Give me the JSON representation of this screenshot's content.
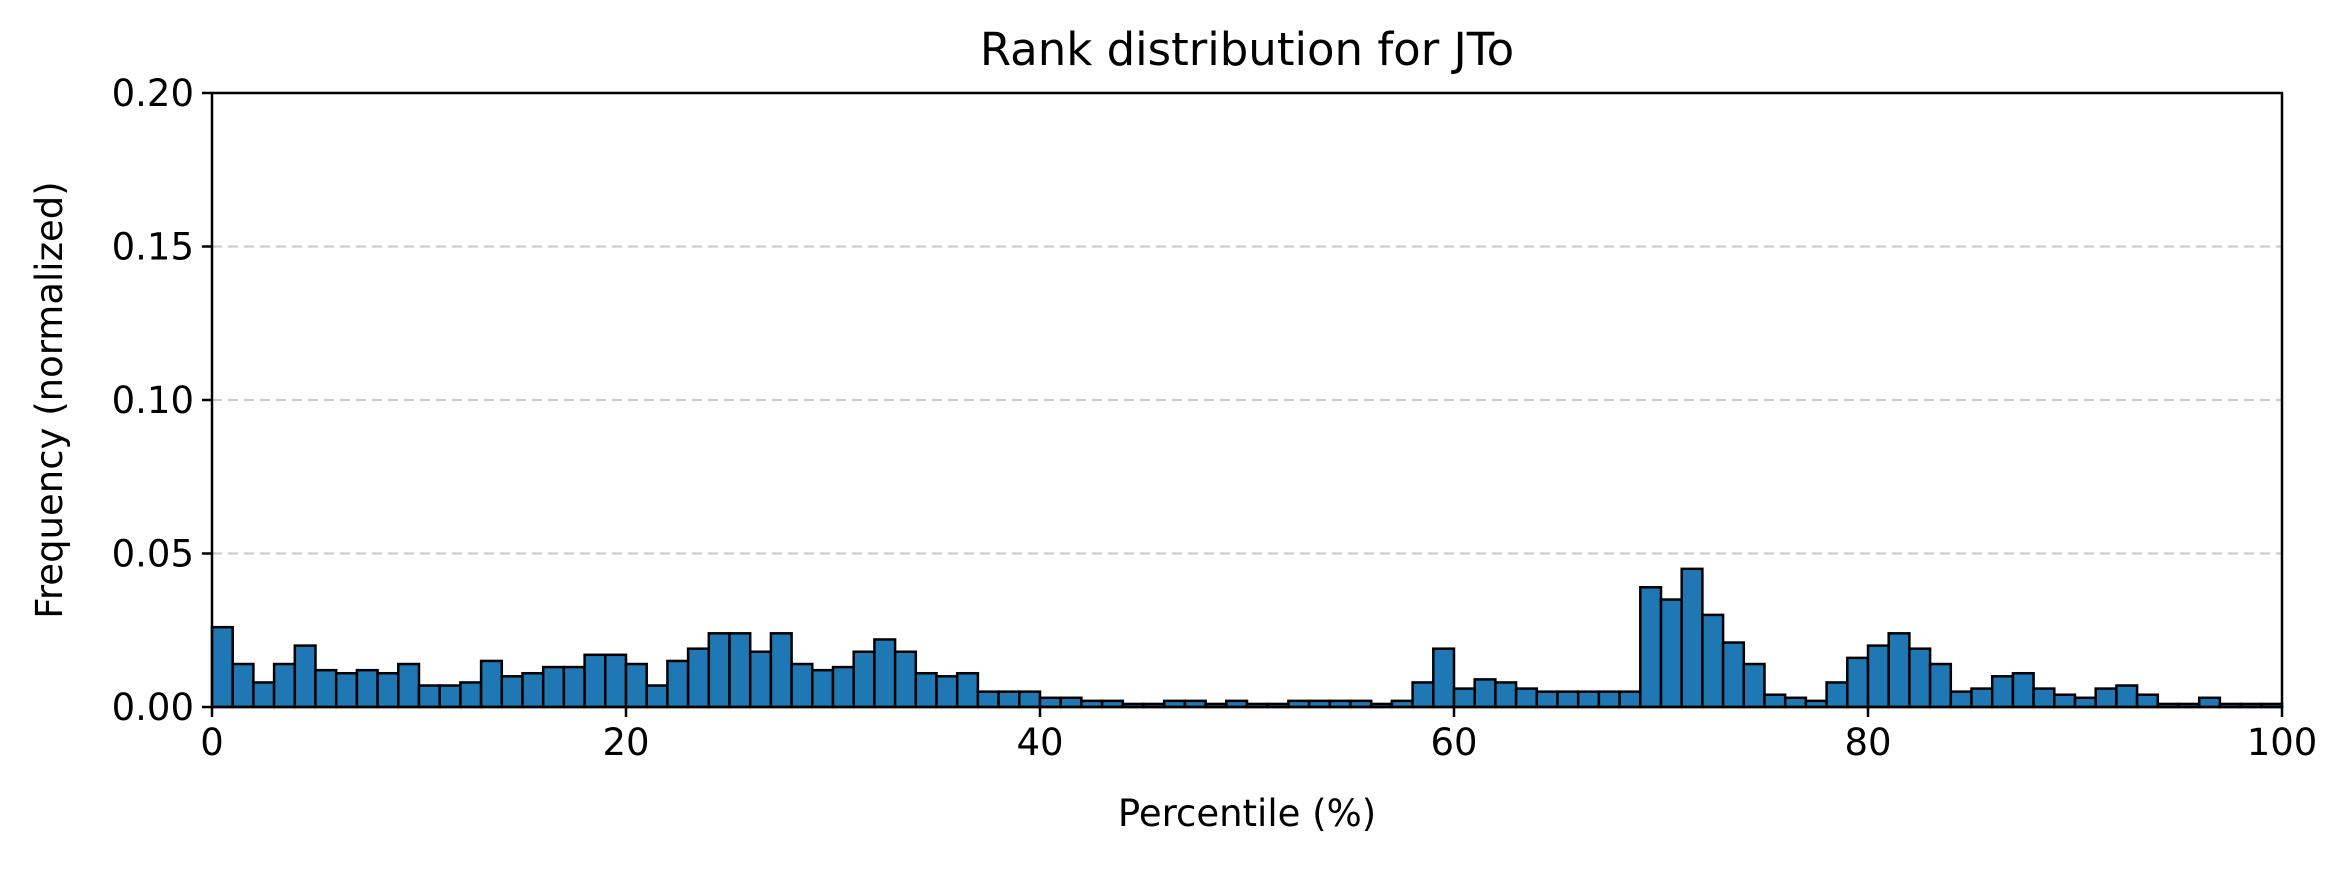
{
  "chart_data": {
    "type": "bar",
    "title": "Rank distribution for JTo",
    "xlabel": "Percentile (%)",
    "ylabel": "Frequency (normalized)",
    "xlim": [
      0,
      100
    ],
    "ylim": [
      0,
      0.2
    ],
    "xticks": [
      0,
      20,
      40,
      60,
      80,
      100
    ],
    "xtick_labels": [
      "0",
      "20",
      "40",
      "60",
      "80",
      "100"
    ],
    "yticks": [
      0,
      0.05,
      0.1,
      0.15,
      0.2
    ],
    "ytick_labels": [
      "0.00",
      "0.05",
      "0.10",
      "0.15",
      "0.20"
    ],
    "grid": "y, dashed",
    "bin_width": 1,
    "bins": [
      0,
      1,
      2,
      3,
      4,
      5,
      6,
      7,
      8,
      9,
      10,
      11,
      12,
      13,
      14,
      15,
      16,
      17,
      18,
      19,
      20,
      21,
      22,
      23,
      24,
      25,
      26,
      27,
      28,
      29,
      30,
      31,
      32,
      33,
      34,
      35,
      36,
      37,
      38,
      39,
      40,
      41,
      42,
      43,
      44,
      45,
      46,
      47,
      48,
      49,
      50,
      51,
      52,
      53,
      54,
      55,
      56,
      57,
      58,
      59,
      60,
      61,
      62,
      63,
      64,
      65,
      66,
      67,
      68,
      69,
      70,
      71,
      72,
      73,
      74,
      75,
      76,
      77,
      78,
      79,
      80,
      81,
      82,
      83,
      84,
      85,
      86,
      87,
      88,
      89,
      90,
      91,
      92,
      93,
      94,
      95,
      96,
      97,
      98,
      99
    ],
    "values": [
      0.026,
      0.014,
      0.008,
      0.014,
      0.02,
      0.012,
      0.011,
      0.012,
      0.011,
      0.014,
      0.007,
      0.007,
      0.008,
      0.015,
      0.01,
      0.011,
      0.013,
      0.013,
      0.017,
      0.017,
      0.014,
      0.007,
      0.015,
      0.019,
      0.024,
      0.024,
      0.018,
      0.024,
      0.014,
      0.012,
      0.013,
      0.018,
      0.022,
      0.018,
      0.011,
      0.01,
      0.011,
      0.005,
      0.005,
      0.005,
      0.003,
      0.003,
      0.002,
      0.002,
      0.001,
      0.001,
      0.002,
      0.002,
      0.001,
      0.002,
      0.001,
      0.001,
      0.002,
      0.002,
      0.002,
      0.002,
      0.001,
      0.002,
      0.008,
      0.019,
      0.006,
      0.009,
      0.008,
      0.006,
      0.005,
      0.005,
      0.005,
      0.005,
      0.005,
      0.039,
      0.035,
      0.045,
      0.03,
      0.021,
      0.014,
      0.004,
      0.003,
      0.002,
      0.008,
      0.016,
      0.02,
      0.024,
      0.019,
      0.014,
      0.005,
      0.006,
      0.01,
      0.011,
      0.006,
      0.004,
      0.003,
      0.006,
      0.007,
      0.004,
      0.001,
      0.001,
      0.003,
      0.001,
      0.001,
      0.001
    ],
    "bar_color": "#1f77b4",
    "edge_color": "#000000",
    "grid_color": "#cccccc"
  }
}
